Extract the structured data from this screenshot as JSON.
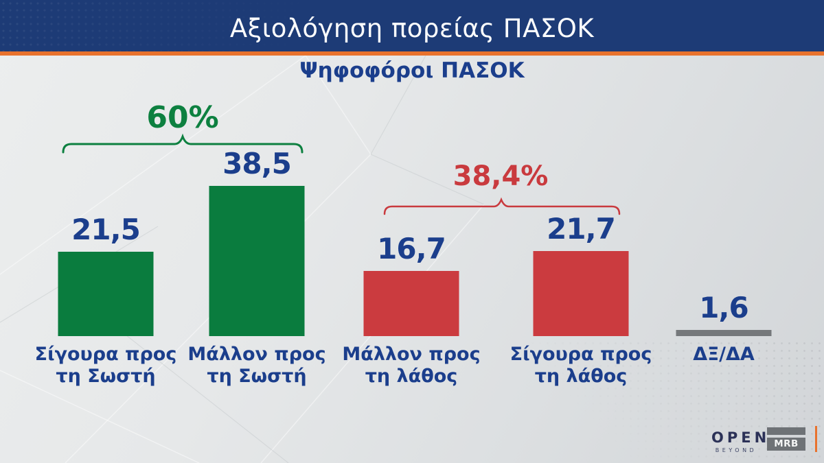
{
  "header": {
    "title": "Αξιολόγηση πορείας ΠΑΣΟΚ"
  },
  "subtitle": "Ψηφοφόροι ΠΑΣΟΚ",
  "chart_data": {
    "type": "bar",
    "title": "Αξιολόγηση πορείας ΠΑΣΟΚ",
    "subtitle": "Ψηφοφόροι ΠΑΣΟΚ",
    "categories": [
      "Σίγουρα προς τη Σωστή",
      "Μάλλον προς τη Σωστή",
      "Μάλλον προς τη λάθος",
      "Σίγουρα προς τη λάθος",
      "ΔΞ/ΔΑ"
    ],
    "values": [
      21.5,
      38.5,
      16.7,
      21.7,
      1.6
    ],
    "value_labels": [
      "21,5",
      "38,5",
      "16,7",
      "21,7",
      "1,6"
    ],
    "bar_colors": [
      "#0a7c3e",
      "#0a7c3e",
      "#cb3b3f",
      "#cb3b3f",
      "#75787b"
    ],
    "groups": [
      {
        "label": "60%",
        "color": "#0d8040",
        "bars": [
          0,
          1
        ]
      },
      {
        "label": "38,4%",
        "color": "#c93a3e",
        "bars": [
          2,
          3
        ]
      }
    ],
    "ylim": [
      0,
      40
    ],
    "grid": false,
    "legend": null
  },
  "footer": {
    "open_logo": {
      "name": "OPEN",
      "tagline": "BEYOND"
    },
    "mrb_logo": "MRB"
  },
  "colors": {
    "header_navy": "#1d3b76",
    "accent_orange": "#e8722d",
    "text_blue": "#1b3e8c",
    "green": "#0a7c3e",
    "red": "#cb3b3f",
    "gray": "#75787b"
  }
}
